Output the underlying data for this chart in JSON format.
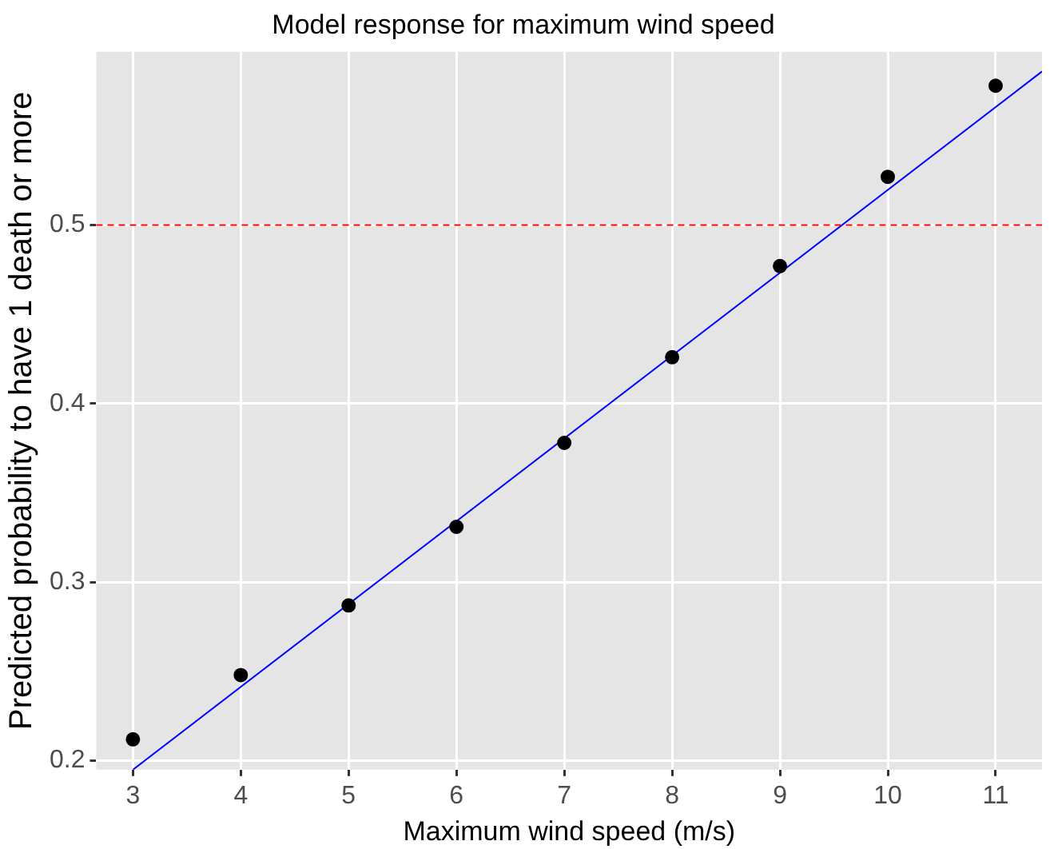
{
  "chart_data": {
    "type": "scatter",
    "title": "Model response for maximum wind speed",
    "xlabel": "Maximum wind speed (m/s)",
    "ylabel": "Predicted probability to have 1 death or more",
    "x": [
      3,
      4,
      5,
      6,
      7,
      8,
      9,
      10,
      11
    ],
    "series": [
      {
        "type": "scatter",
        "marker": "circle",
        "color": "#000000",
        "values": [
          0.212,
          0.248,
          0.287,
          0.331,
          0.378,
          0.426,
          0.477,
          0.527,
          0.578
        ]
      },
      {
        "type": "line",
        "color": "#0000ff",
        "x": [
          3,
          11.43
        ],
        "values": [
          0.195,
          0.586
        ]
      }
    ],
    "xlim": [
      2.66,
      11.43
    ],
    "xticks": [
      3,
      4,
      5,
      6,
      7,
      8,
      9,
      10,
      11
    ],
    "ylim": [
      0.195,
      0.597
    ],
    "yticks": [
      0.2,
      0.3,
      0.4,
      0.5
    ],
    "ref_lines": [
      {
        "axis": "y",
        "value": 0.5,
        "color": "#ff0000",
        "line_style": "dashed"
      }
    ],
    "grid": true,
    "legend": false
  }
}
